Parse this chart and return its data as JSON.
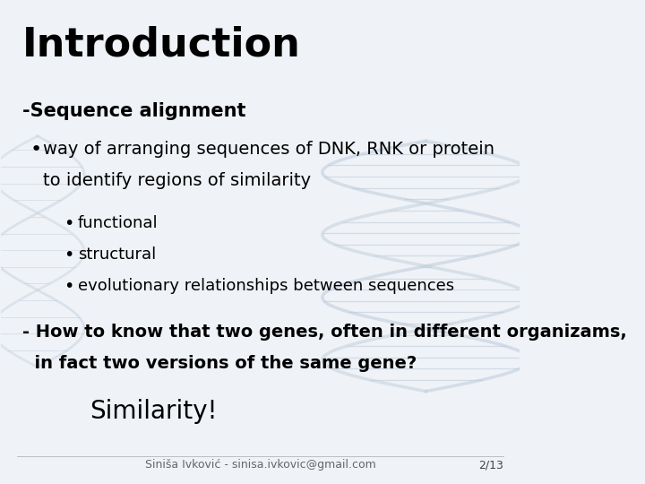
{
  "title": "Introduction",
  "subtitle": "-Sequence alignment",
  "bullet1_line1": "way of arranging sequences of DNK, RNK or protein",
  "bullet1_line2": "to identify regions of similarity",
  "sub_bullets": [
    "functional",
    "structural",
    "evolutionary relationships between sequences"
  ],
  "bold_text_line1": "- How to know that two genes, often in different organizams,",
  "bold_text_line2": "  in fact two versions of the same gene?",
  "similarity": "Similarity!",
  "footer": "Siniša Ivković - sinisa.ivkovic@gmail.com",
  "page": "2/13",
  "bg_color": "#eff2f7",
  "title_fontsize": 32,
  "subtitle_fontsize": 15,
  "bullet_fontsize": 14,
  "sub_bullet_fontsize": 13,
  "bold_fontsize": 14,
  "similarity_fontsize": 20,
  "footer_fontsize": 9
}
